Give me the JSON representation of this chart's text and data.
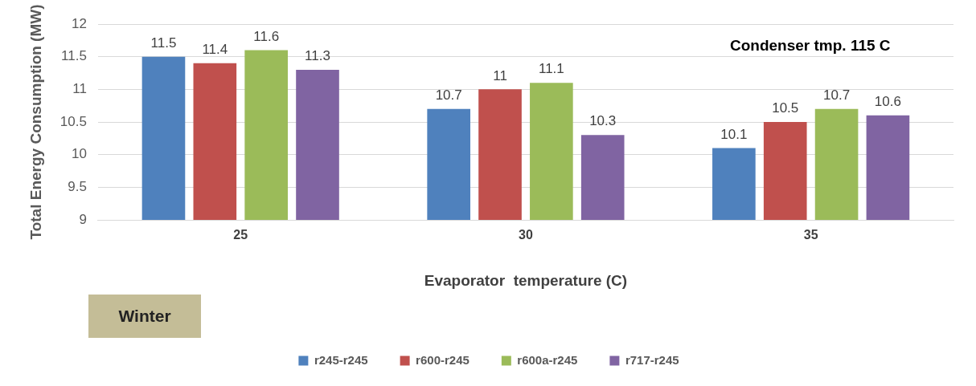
{
  "chart_data": {
    "type": "bar",
    "xlabel": "Evaporator  temperature (C)",
    "ylabel": "Total Energy Consumption (MW)",
    "categories": [
      "25",
      "30",
      "35"
    ],
    "series": [
      {
        "name": "r245-r245",
        "color": "#4f81bd",
        "values": [
          11.5,
          10.7,
          10.1
        ]
      },
      {
        "name": "r600-r245",
        "color": "#c0504d",
        "values": [
          11.4,
          11,
          10.5
        ]
      },
      {
        "name": "r600a-r245",
        "color": "#9bbb59",
        "values": [
          11.6,
          11.1,
          10.7
        ]
      },
      {
        "name": "r717-r245",
        "color": "#8064a2",
        "values": [
          11.3,
          10.3,
          10.6
        ]
      }
    ],
    "ylim": [
      9,
      12
    ],
    "yticks": [
      9,
      9.5,
      10,
      10.5,
      11,
      11.5,
      12
    ],
    "grid": "y",
    "legend": "bottom",
    "data_labels": true,
    "annotations": [
      "Condenser tmp.  115 C",
      "Winter"
    ]
  }
}
